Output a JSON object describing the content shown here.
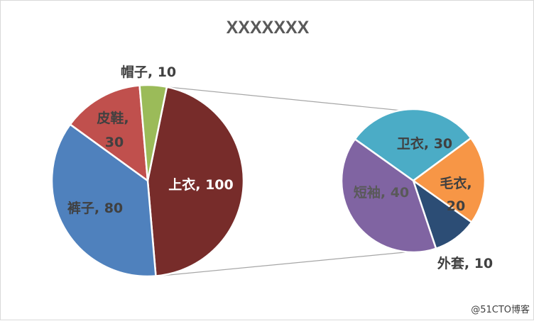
{
  "chart_data": {
    "type": "pie",
    "subtype": "pie-of-pie",
    "title": "XXXXXXX",
    "main_pie": [
      {
        "label": "上衣",
        "value": 100,
        "color": "#772C2A"
      },
      {
        "label": "裤子",
        "value": 80,
        "color": "#4F81BD"
      },
      {
        "label": "皮鞋",
        "value": 30,
        "color": "#C0504D"
      },
      {
        "label": "帽子",
        "value": 10,
        "color": "#9BBB59"
      }
    ],
    "secondary_pie": [
      {
        "label": "卫衣",
        "value": 30,
        "color": "#4BACC6"
      },
      {
        "label": "毛衣",
        "value": 20,
        "color": "#F79646"
      },
      {
        "label": "外套",
        "value": 10,
        "color": "#2C4D75"
      },
      {
        "label": "短袖",
        "value": 40,
        "color": "#8064A2"
      }
    ],
    "label_text": {
      "上衣": "上衣, 100",
      "裤子": "裤子, 80",
      "皮鞋_line1": "皮鞋,",
      "皮鞋_line2": "30",
      "帽子": "帽子, 10",
      "卫衣": "卫衣, 30",
      "毛衣_line1": "毛衣,",
      "毛衣_line2": "20",
      "外套": "外套, 10",
      "短袖": "短袖, 40"
    },
    "connector_color": "#A6A6A6",
    "legend": "none"
  },
  "watermark": "@51CTO博客"
}
